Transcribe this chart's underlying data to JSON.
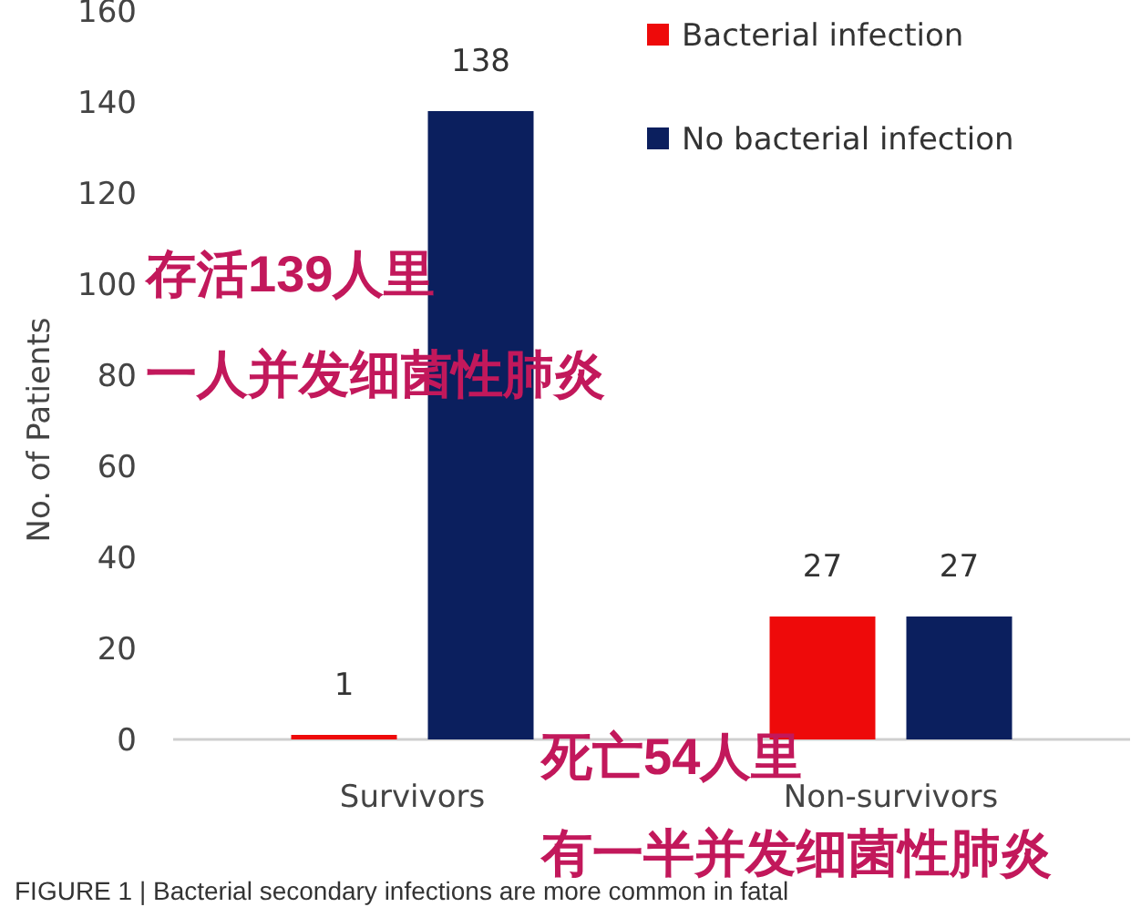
{
  "chart_data": {
    "type": "bar",
    "ylabel": "No. of Patients",
    "categories": [
      "Survivors",
      "Non-survivors"
    ],
    "series": [
      {
        "name": "Bacterial infection",
        "color": "#ee0a0a",
        "values": [
          1,
          27
        ]
      },
      {
        "name": "No bacterial infection",
        "color": "#0b1f5e",
        "values": [
          138,
          27
        ]
      }
    ],
    "ylim": [
      0,
      160
    ],
    "yticks": [
      0,
      20,
      40,
      60,
      80,
      100,
      120,
      140,
      160
    ],
    "data_labels": true,
    "grid": false,
    "legend": "top right",
    "annotations": [
      "存活139人里",
      "一人并发细菌性肺炎",
      "死亡54人里",
      "有一半并发细菌性肺炎",
      "FIGURE 1 | Bacterial secondary infections are more common in fatal"
    ]
  }
}
